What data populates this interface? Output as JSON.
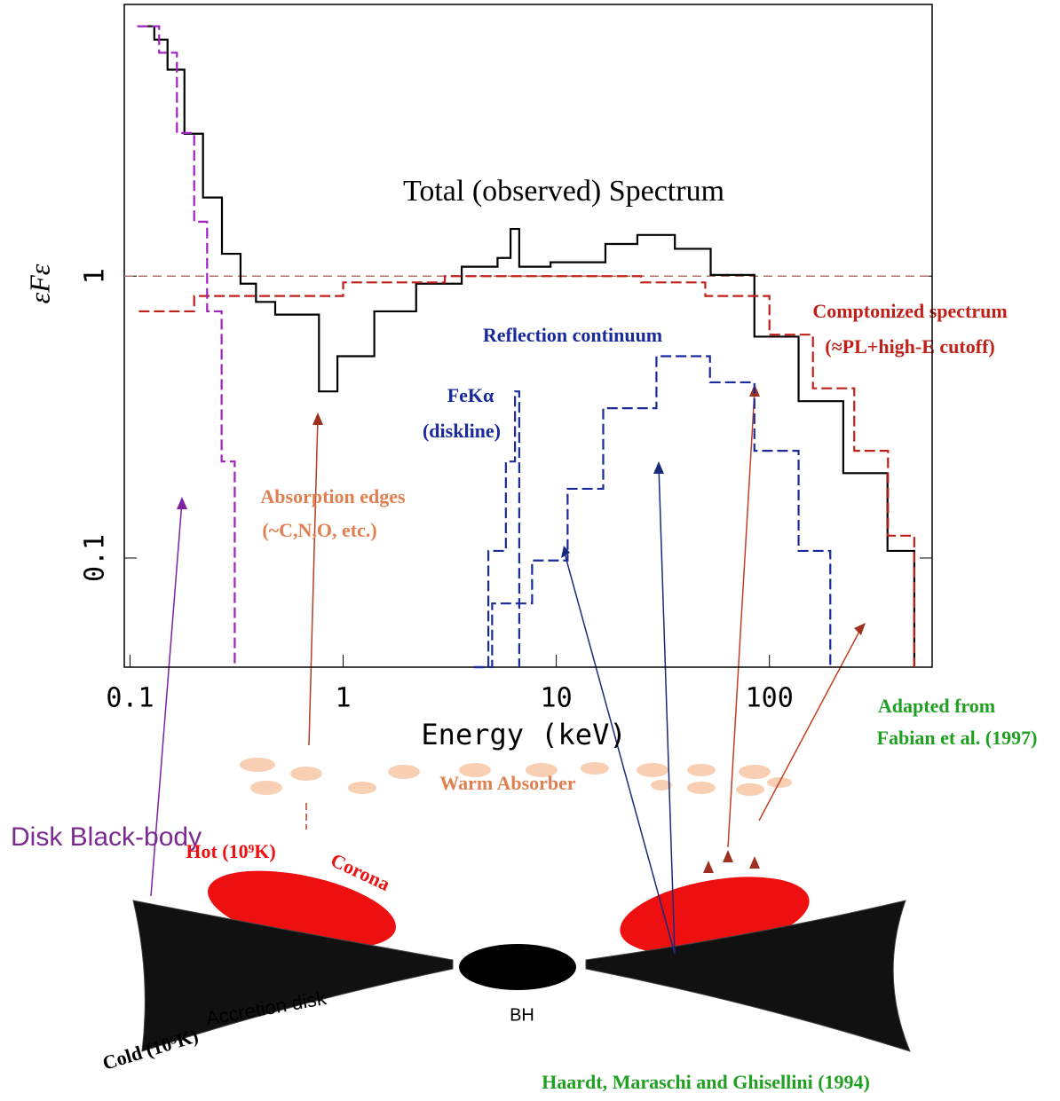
{
  "chart_data": {
    "type": "line",
    "xlabel": "Energy (keV)",
    "ylabel": "εFε",
    "log_x": true,
    "log_y": true,
    "xlim": [
      0.094,
      580
    ],
    "ylim": [
      0.041,
      9.2
    ],
    "xticks": [
      0.1,
      1,
      10,
      100
    ],
    "yticks": [
      0.1,
      1
    ],
    "hline": 1,
    "series": [
      {
        "name": "Total (observed) Spectrum",
        "color": "#000000",
        "dash": false,
        "x": [
          0.11,
          0.13,
          0.15,
          0.18,
          0.22,
          0.27,
          0.33,
          0.39,
          0.48,
          0.64,
          0.77,
          0.94,
          1.4,
          2.2,
          3.6,
          5.3,
          6.1,
          6.7,
          9.4,
          17,
          24,
          36,
          53,
          85,
          137,
          222,
          358,
          478
        ],
        "values": [
          7.7,
          6.9,
          5.4,
          3.2,
          1.9,
          1.2,
          0.94,
          0.81,
          0.73,
          0.73,
          0.39,
          0.52,
          0.75,
          0.94,
          1.08,
          1.16,
          1.47,
          1.08,
          1.12,
          1.3,
          1.4,
          1.25,
          1.01,
          0.61,
          0.36,
          0.2,
          0.106,
          0.041
        ]
      },
      {
        "name": "Comptonized spectrum",
        "note": "(≈PL+high-E cutoff)",
        "color": "#c0201a",
        "dash": true,
        "x": [
          0.11,
          0.2,
          0.4,
          1,
          3,
          10,
          25,
          50,
          100,
          160,
          250,
          360,
          478
        ],
        "values": [
          0.75,
          0.85,
          0.85,
          0.95,
          1,
          1,
          0.95,
          0.85,
          0.62,
          0.4,
          0.24,
          0.12,
          0.041
        ]
      },
      {
        "name": "Reflection continuum",
        "color": "#1a2a9a",
        "dash": true,
        "x": [
          4.1,
          5,
          7.7,
          11.3,
          16.6,
          29.5,
          52.6,
          85,
          137,
          193
        ],
        "values": [
          0.041,
          0.069,
          0.098,
          0.176,
          0.34,
          0.52,
          0.42,
          0.24,
          0.106,
          0.041
        ]
      },
      {
        "name": "FeKα",
        "note": "(diskline)",
        "color": "#1a2a9a",
        "dash": true,
        "x": [
          4.1,
          4.8,
          5.8,
          6.4,
          6.7
        ],
        "values": [
          0.041,
          0.106,
          0.22,
          0.39,
          0.041
        ]
      },
      {
        "name": "Disk Black-body",
        "color": "#a020c0",
        "dash": true,
        "x": [
          0.108,
          0.137,
          0.166,
          0.2,
          0.23,
          0.269,
          0.31
        ],
        "values": [
          7.7,
          6.2,
          3.22,
          1.56,
          0.75,
          0.22,
          0.041
        ]
      }
    ],
    "annotations": [
      "Absorption edges",
      "(~C,N,O, etc.)"
    ]
  },
  "diagram": {
    "warm_absorber": "Warm Absorber",
    "hot": "Hot (10⁹K)",
    "corona": "Corona",
    "cold": "Cold (10⁵K)",
    "disk": "Accretion disk",
    "bh": "BH",
    "credit_bottom": "Haardt, Maraschi and Ghisellini (1994)",
    "credit_top": [
      "Adapted from",
      "Fabian et al. (1997)"
    ]
  }
}
